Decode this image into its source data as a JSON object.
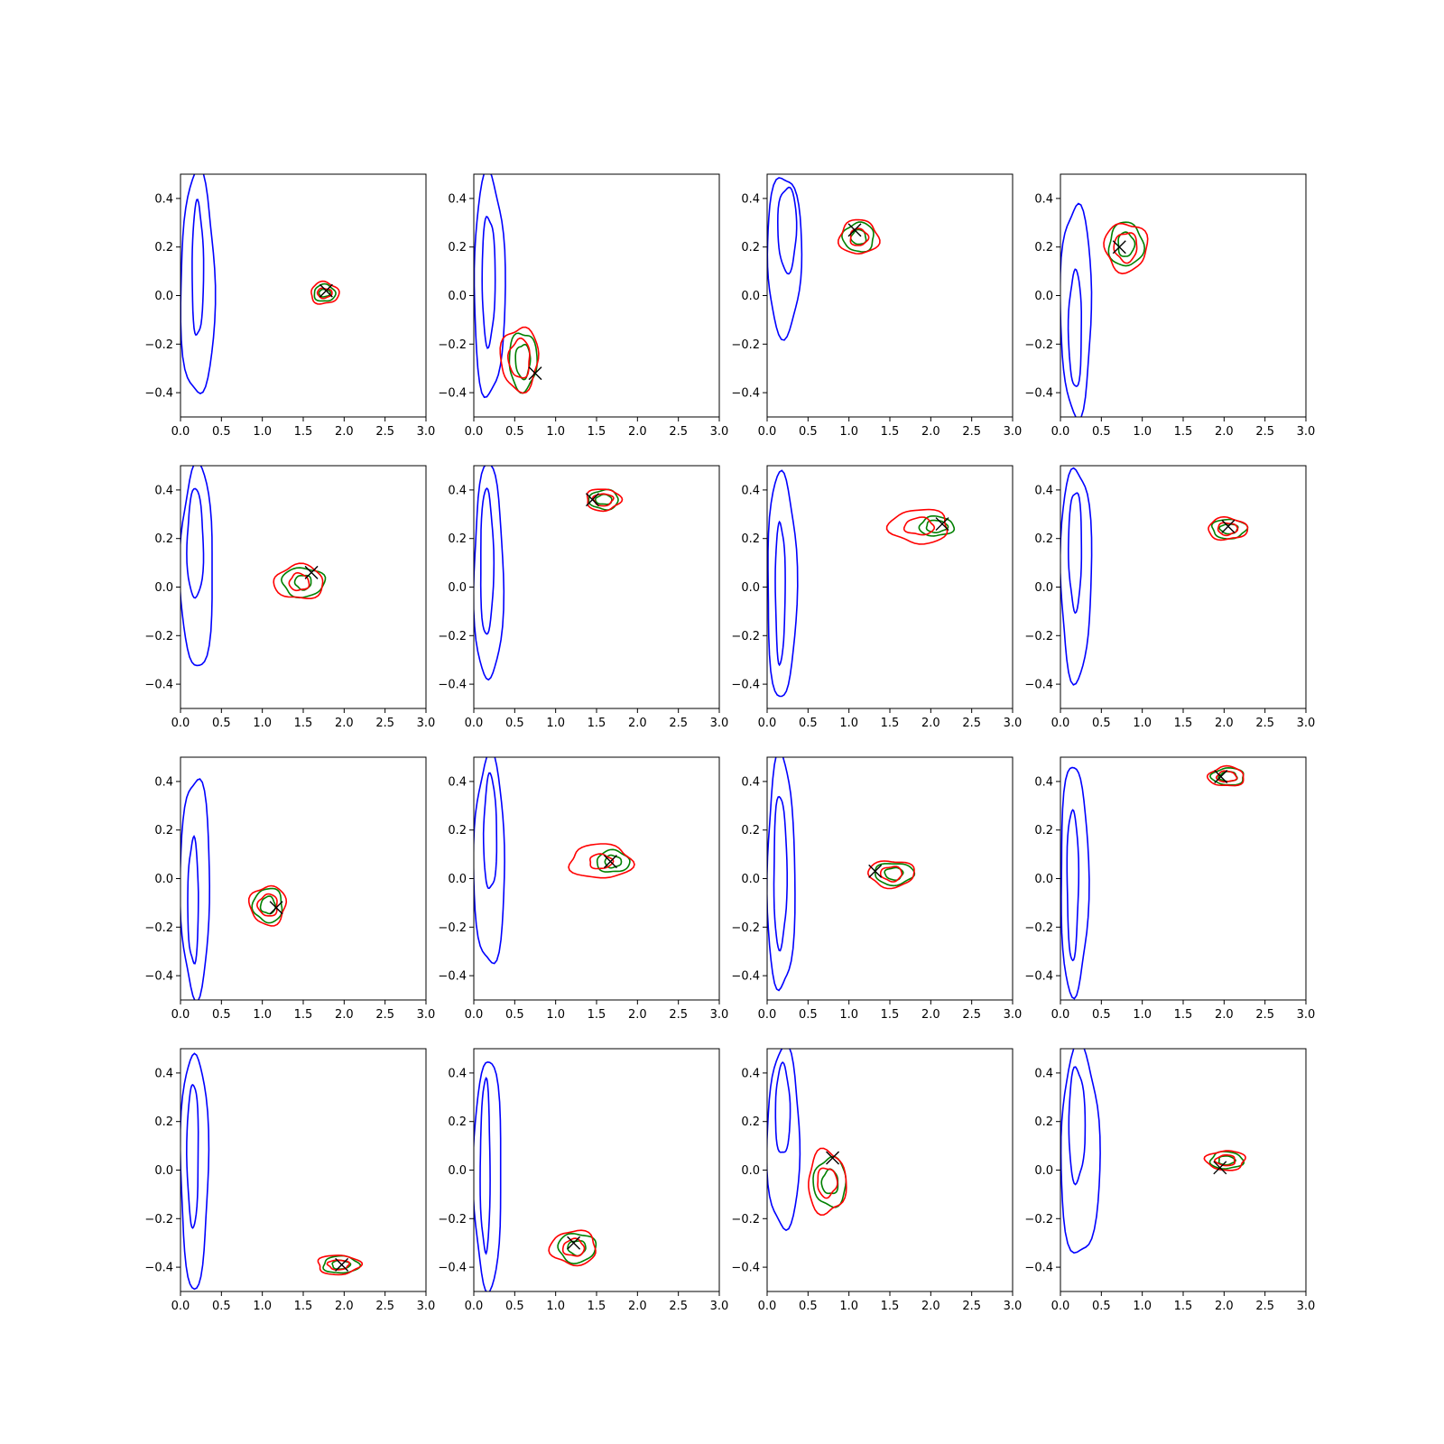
{
  "figure": {
    "rows": 4,
    "cols": 4
  },
  "colors": {
    "prior": "#0000ff",
    "green_posterior": "#008000",
    "red_posterior": "#ff0000",
    "marker": "#000000",
    "axes": "#000000"
  },
  "chart_data": {
    "type": "contour",
    "title": "",
    "xlabel": "",
    "ylabel": "",
    "xlim": [
      0.0,
      3.0
    ],
    "ylim": [
      -0.5,
      0.5
    ],
    "x_ticks": [
      "0.0",
      "0.5",
      "1.0",
      "1.5",
      "2.0",
      "2.5",
      "3.0"
    ],
    "x_tick_values": [
      0.0,
      0.5,
      1.0,
      1.5,
      2.0,
      2.5,
      3.0
    ],
    "y_ticks": [
      "−0.4",
      "−0.2",
      "0.0",
      "0.2",
      "0.4"
    ],
    "y_tick_values": [
      -0.4,
      -0.2,
      0.0,
      0.2,
      0.4
    ],
    "grid": false,
    "legend": "none",
    "panels": [
      {
        "prior": {
          "outer": [
            0.0,
            0.42,
            -0.42,
            0.5
          ],
          "inner": [
            0.14,
            0.28,
            -0.17,
            0.38
          ]
        },
        "green": {
          "center": [
            1.76,
            0.01
          ],
          "outer": [
            0.13,
            0.035
          ],
          "inner": [
            0.07,
            0.015
          ]
        },
        "red": {
          "center": [
            1.76,
            0.01
          ],
          "outer": [
            0.17,
            0.045
          ],
          "inner": [
            0.09,
            0.02
          ]
        },
        "marker": [
          1.78,
          0.02
        ]
      },
      {
        "prior": {
          "outer": [
            0.0,
            0.38,
            -0.42,
            0.5
          ],
          "inner": [
            0.1,
            0.26,
            -0.2,
            0.33
          ]
        },
        "green": {
          "center": [
            0.6,
            -0.27
          ],
          "outer": [
            0.17,
            0.12
          ],
          "inner": [
            0.09,
            0.07
          ]
        },
        "red": {
          "center": [
            0.56,
            -0.26
          ],
          "outer": [
            0.23,
            0.13
          ],
          "inner": [
            0.13,
            0.08
          ]
        },
        "marker": [
          0.75,
          -0.32
        ]
      },
      {
        "prior": {
          "outer": [
            0.0,
            0.42,
            -0.16,
            0.5
          ],
          "inner": [
            0.13,
            0.36,
            0.1,
            0.45
          ]
        },
        "green": {
          "center": [
            1.12,
            0.24
          ],
          "outer": [
            0.19,
            0.06
          ],
          "inner": [
            0.09,
            0.03
          ]
        },
        "red": {
          "center": [
            1.12,
            0.24
          ],
          "outer": [
            0.24,
            0.07
          ],
          "inner": [
            0.11,
            0.035
          ]
        },
        "marker": [
          1.07,
          0.27
        ]
      },
      {
        "prior": {
          "outer": [
            0.0,
            0.38,
            -0.49,
            0.38
          ],
          "inner": [
            0.1,
            0.26,
            -0.38,
            0.1
          ]
        },
        "green": {
          "center": [
            0.8,
            0.21
          ],
          "outer": [
            0.21,
            0.09
          ],
          "inner": [
            0.1,
            0.05
          ]
        },
        "red": {
          "center": [
            0.8,
            0.2
          ],
          "outer": [
            0.26,
            0.1
          ],
          "inner": [
            0.14,
            0.06
          ]
        },
        "marker": [
          0.72,
          0.2
        ]
      },
      {
        "prior": {
          "outer": [
            0.0,
            0.4,
            -0.34,
            0.5
          ],
          "inner": [
            0.08,
            0.28,
            -0.05,
            0.4
          ]
        },
        "green": {
          "center": [
            1.5,
            0.02
          ],
          "outer": [
            0.26,
            0.06
          ],
          "inner": [
            0.1,
            0.03
          ]
        },
        "red": {
          "center": [
            1.45,
            0.02
          ],
          "outer": [
            0.3,
            0.07
          ],
          "inner": [
            0.12,
            0.035
          ]
        },
        "marker": [
          1.6,
          0.06
        ]
      },
      {
        "prior": {
          "outer": [
            0.0,
            0.36,
            -0.39,
            0.5
          ],
          "inner": [
            0.08,
            0.24,
            -0.2,
            0.4
          ]
        },
        "green": {
          "center": [
            1.59,
            0.36
          ],
          "outer": [
            0.18,
            0.04
          ],
          "inner": [
            0.1,
            0.02
          ]
        },
        "red": {
          "center": [
            1.58,
            0.36
          ],
          "outer": [
            0.21,
            0.045
          ],
          "inner": [
            0.12,
            0.025
          ]
        },
        "marker": [
          1.45,
          0.36
        ]
      },
      {
        "prior": {
          "outer": [
            0.0,
            0.36,
            -0.46,
            0.47
          ],
          "inner": [
            0.1,
            0.22,
            -0.31,
            0.27
          ]
        },
        "green": {
          "center": [
            2.07,
            0.25
          ],
          "outer": [
            0.21,
            0.04
          ],
          "inner": [
            0.13,
            0.025
          ]
        },
        "red": {
          "center": [
            1.86,
            0.25
          ],
          "outer": [
            0.36,
            0.07
          ],
          "inner": [
            0.18,
            0.035
          ]
        },
        "marker": [
          2.14,
          0.26
        ]
      },
      {
        "prior": {
          "outer": [
            0.0,
            0.38,
            -0.38,
            0.5
          ],
          "inner": [
            0.1,
            0.26,
            -0.09,
            0.4
          ]
        },
        "green": {
          "center": [
            2.06,
            0.24
          ],
          "outer": [
            0.21,
            0.04
          ],
          "inner": [
            0.11,
            0.02
          ]
        },
        "red": {
          "center": [
            2.04,
            0.24
          ],
          "outer": [
            0.24,
            0.045
          ],
          "inner": [
            0.12,
            0.025
          ]
        },
        "marker": [
          2.05,
          0.25
        ]
      },
      {
        "prior": {
          "outer": [
            0.0,
            0.36,
            -0.48,
            0.42
          ],
          "inner": [
            0.09,
            0.22,
            -0.35,
            0.16
          ]
        },
        "green": {
          "center": [
            1.07,
            -0.11
          ],
          "outer": [
            0.18,
            0.07
          ],
          "inner": [
            0.09,
            0.035
          ]
        },
        "red": {
          "center": [
            1.07,
            -0.11
          ],
          "outer": [
            0.22,
            0.08
          ],
          "inner": [
            0.12,
            0.045
          ]
        },
        "marker": [
          1.17,
          -0.12
        ]
      },
      {
        "prior": {
          "outer": [
            0.0,
            0.38,
            -0.36,
            0.5
          ],
          "inner": [
            0.12,
            0.28,
            -0.05,
            0.42
          ]
        },
        "green": {
          "center": [
            1.7,
            0.07
          ],
          "outer": [
            0.2,
            0.045
          ],
          "inner": [
            0.1,
            0.025
          ]
        },
        "red": {
          "center": [
            1.55,
            0.07
          ],
          "outer": [
            0.38,
            0.07
          ],
          "inner": [
            0.14,
            0.03
          ]
        },
        "marker": [
          1.67,
          0.07
        ]
      },
      {
        "prior": {
          "outer": [
            0.0,
            0.34,
            -0.47,
            0.5
          ],
          "inner": [
            0.08,
            0.24,
            -0.29,
            0.34
          ]
        },
        "green": {
          "center": [
            1.55,
            0.02
          ],
          "outer": [
            0.24,
            0.045
          ],
          "inner": [
            0.11,
            0.025
          ]
        },
        "red": {
          "center": [
            1.52,
            0.02
          ],
          "outer": [
            0.28,
            0.055
          ],
          "inner": [
            0.13,
            0.03
          ]
        },
        "marker": [
          1.32,
          0.03
        ]
      },
      {
        "prior": {
          "outer": [
            0.0,
            0.34,
            -0.48,
            0.47
          ],
          "inner": [
            0.08,
            0.22,
            -0.33,
            0.29
          ]
        },
        "green": {
          "center": [
            2.05,
            0.42
          ],
          "outer": [
            0.2,
            0.035
          ],
          "inner": [
            0.11,
            0.02
          ]
        },
        "red": {
          "center": [
            2.03,
            0.42
          ],
          "outer": [
            0.22,
            0.04
          ],
          "inner": [
            0.12,
            0.022
          ]
        },
        "marker": [
          1.96,
          0.42
        ]
      },
      {
        "prior": {
          "outer": [
            0.0,
            0.34,
            -0.48,
            0.49
          ],
          "inner": [
            0.08,
            0.22,
            -0.23,
            0.36
          ]
        },
        "green": {
          "center": [
            1.96,
            -0.39
          ],
          "outer": [
            0.22,
            0.035
          ],
          "inner": [
            0.11,
            0.018
          ]
        },
        "red": {
          "center": [
            1.93,
            -0.39
          ],
          "outer": [
            0.26,
            0.04
          ],
          "inner": [
            0.13,
            0.02
          ]
        },
        "marker": [
          1.97,
          -0.39
        ]
      },
      {
        "prior": {
          "outer": [
            0.0,
            0.34,
            -0.49,
            0.46
          ],
          "inner": [
            0.08,
            0.2,
            -0.34,
            0.37
          ]
        },
        "green": {
          "center": [
            1.26,
            -0.32
          ],
          "outer": [
            0.23,
            0.06
          ],
          "inner": [
            0.11,
            0.03
          ]
        },
        "red": {
          "center": [
            1.22,
            -0.32
          ],
          "outer": [
            0.28,
            0.07
          ],
          "inner": [
            0.13,
            0.035
          ]
        },
        "marker": [
          1.22,
          -0.3
        ]
      },
      {
        "prior": {
          "outer": [
            0.0,
            0.4,
            -0.25,
            0.5
          ],
          "inner": [
            0.1,
            0.28,
            0.06,
            0.43
          ]
        },
        "green": {
          "center": [
            0.77,
            -0.05
          ],
          "outer": [
            0.2,
            0.1
          ],
          "inner": [
            0.1,
            0.05
          ]
        },
        "red": {
          "center": [
            0.73,
            -0.05
          ],
          "outer": [
            0.23,
            0.13
          ],
          "inner": [
            0.12,
            0.06
          ]
        },
        "marker": [
          0.8,
          0.05
        ]
      },
      {
        "prior": {
          "outer": [
            0.0,
            0.48,
            -0.36,
            0.5
          ],
          "inner": [
            0.1,
            0.3,
            -0.05,
            0.42
          ]
        },
        "green": {
          "center": [
            2.03,
            0.04
          ],
          "outer": [
            0.2,
            0.035
          ],
          "inner": [
            0.1,
            0.018
          ]
        },
        "red": {
          "center": [
            2.02,
            0.04
          ],
          "outer": [
            0.24,
            0.04
          ],
          "inner": [
            0.12,
            0.022
          ]
        },
        "marker": [
          1.95,
          0.01
        ]
      }
    ]
  }
}
